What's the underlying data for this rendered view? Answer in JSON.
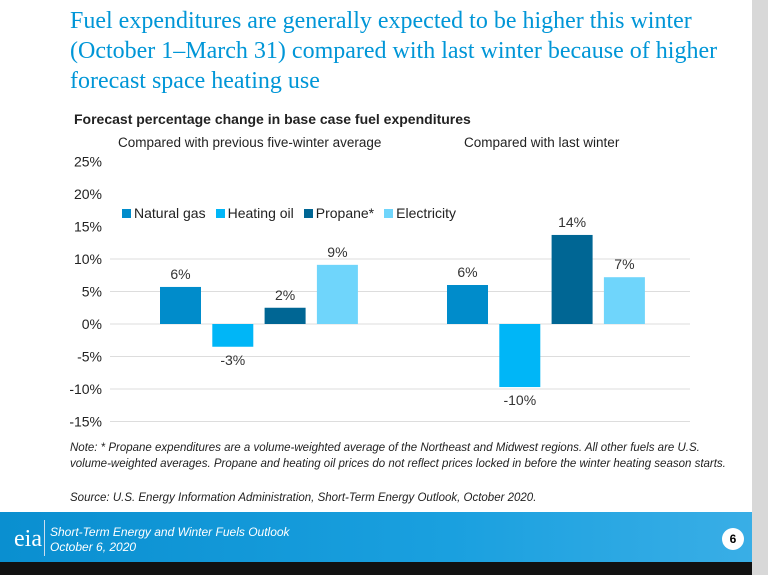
{
  "slide": {
    "title": "Fuel expenditures are generally expected to be higher this winter (October 1–March 31) compared with last winter because of higher forecast space heating use",
    "note": "Note: * Propane expenditures are a volume-weighted average of the Northeast and Midwest regions. All other fuels are U.S. volume-weighted averages. Propane and heating oil prices do not reflect prices locked in before the winter heating season starts.",
    "source": "Source: U.S. Energy Information Administration, Short-Term Energy Outlook, October 2020.",
    "footer": {
      "logo": "eia",
      "line1": "Short-Term Energy and Winter Fuels Outlook",
      "line2": "October 6, 2020",
      "page": "6"
    }
  },
  "chart_data": {
    "type": "bar",
    "title": "Forecast percentage change in base case fuel expenditures",
    "groups": [
      "Compared with previous five-winter average",
      "Compared with last winter"
    ],
    "series": [
      {
        "name": "Natural gas",
        "color": "#008ccb",
        "values": [
          5.7,
          6.0
        ],
        "labels": [
          "6%",
          "6%"
        ]
      },
      {
        "name": "Heating oil",
        "color": "#00b6f7",
        "values": [
          -3.5,
          -9.7
        ],
        "labels": [
          "-3%",
          "-10%"
        ]
      },
      {
        "name": "Propane*",
        "color": "#006694",
        "values": [
          2.5,
          13.7
        ],
        "labels": [
          "2%",
          "14%"
        ]
      },
      {
        "name": "Electricity",
        "color": "#6fd5fb",
        "values": [
          9.1,
          7.2
        ],
        "labels": [
          "9%",
          "7%"
        ]
      }
    ],
    "ylim": [
      -15,
      25
    ],
    "yticks": [
      "25%",
      "20%",
      "15%",
      "10%",
      "5%",
      "0%",
      "-5%",
      "-10%",
      "-15%"
    ],
    "grid": true,
    "legend": "top-left"
  }
}
